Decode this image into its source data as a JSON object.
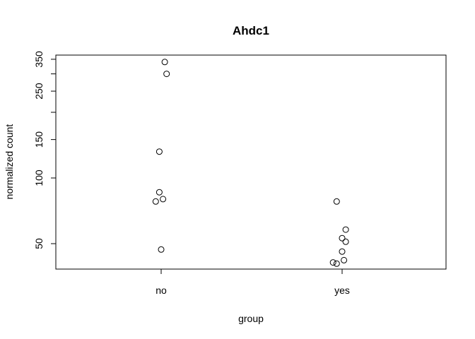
{
  "chart_data": {
    "type": "scatter",
    "title": "Ahdc1",
    "xlabel": "group",
    "ylabel": "normalized count",
    "categories": [
      "no",
      "yes"
    ],
    "y_scale": "log",
    "ylim": [
      35,
      380
    ],
    "y_ticks": [
      50,
      100,
      150,
      250,
      350
    ],
    "y_tick_marks": [
      50,
      100,
      150,
      200,
      250,
      300,
      350
    ],
    "grid": false,
    "legend": "none",
    "points": [
      {
        "group": "no",
        "jitter": 0.02,
        "y": 340
      },
      {
        "group": "no",
        "jitter": 0.03,
        "y": 300
      },
      {
        "group": "no",
        "jitter": -0.01,
        "y": 132
      },
      {
        "group": "no",
        "jitter": -0.01,
        "y": 86
      },
      {
        "group": "no",
        "jitter": 0.01,
        "y": 80
      },
      {
        "group": "no",
        "jitter": -0.03,
        "y": 78
      },
      {
        "group": "no",
        "jitter": 0.0,
        "y": 47
      },
      {
        "group": "yes",
        "jitter": -0.03,
        "y": 78
      },
      {
        "group": "yes",
        "jitter": 0.02,
        "y": 58
      },
      {
        "group": "yes",
        "jitter": 0.0,
        "y": 53
      },
      {
        "group": "yes",
        "jitter": 0.02,
        "y": 51
      },
      {
        "group": "yes",
        "jitter": 0.0,
        "y": 46
      },
      {
        "group": "yes",
        "jitter": 0.01,
        "y": 42
      },
      {
        "group": "yes",
        "jitter": -0.05,
        "y": 41
      },
      {
        "group": "yes",
        "jitter": -0.03,
        "y": 40.5
      }
    ]
  }
}
